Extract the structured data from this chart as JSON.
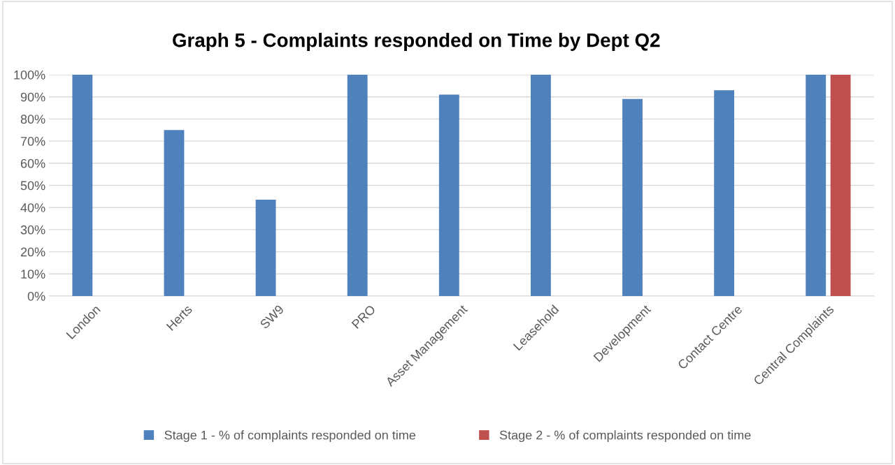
{
  "chart_data": {
    "type": "bar",
    "title": "Graph 5 - Complaints responded on Time by Dept Q2",
    "categories": [
      "London",
      "Herts",
      "SW9",
      "PRO",
      "Asset Management",
      "Leasehold",
      "Development",
      "Contact Centre",
      "Central Complaints"
    ],
    "series": [
      {
        "name": "Stage 1 - % of complaints responded on time",
        "color": "#4f81bd",
        "values": [
          100,
          75,
          43.5,
          100,
          91,
          100,
          89,
          93,
          100
        ]
      },
      {
        "name": "Stage 2 - % of complaints responded on time",
        "color": "#c0504d",
        "values": [
          null,
          null,
          null,
          null,
          null,
          null,
          null,
          null,
          100
        ]
      }
    ],
    "ylim": [
      0,
      100
    ],
    "yticks": [
      {
        "value": 0,
        "label": "0%"
      },
      {
        "value": 10,
        "label": "10%"
      },
      {
        "value": 20,
        "label": "20%"
      },
      {
        "value": 30,
        "label": "30%"
      },
      {
        "value": 40,
        "label": "40%"
      },
      {
        "value": 50,
        "label": "50%"
      },
      {
        "value": 60,
        "label": "60%"
      },
      {
        "value": 70,
        "label": "70%"
      },
      {
        "value": 80,
        "label": "80%"
      },
      {
        "value": 90,
        "label": "90%"
      },
      {
        "value": 100,
        "label": "100%"
      }
    ],
    "grid": "y",
    "legend": "bottom"
  }
}
